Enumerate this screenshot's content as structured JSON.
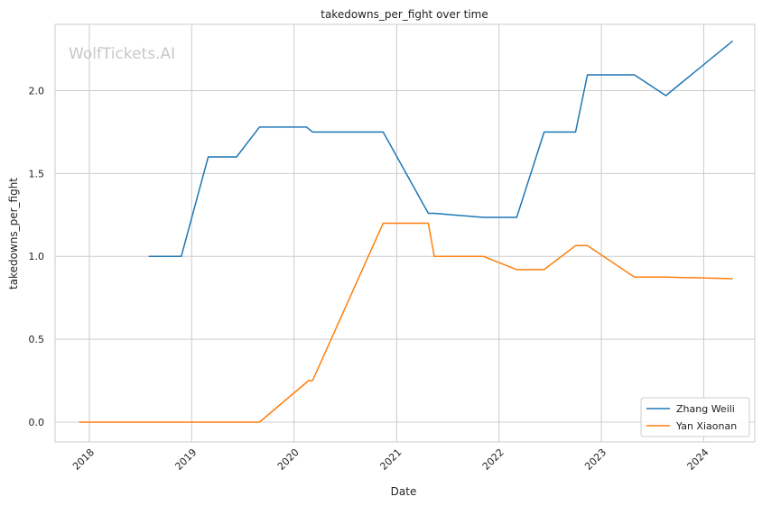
{
  "chart_data": {
    "type": "line",
    "title": "takedowns_per_fight over time",
    "xlabel": "Date",
    "ylabel": "takedowns_per_fight",
    "watermark": "WolfTickets.AI",
    "x_tick_labels": [
      "2018",
      "2019",
      "2020",
      "2021",
      "2022",
      "2023",
      "2024"
    ],
    "y_tick_labels": [
      "0.0",
      "0.5",
      "1.0",
      "1.5",
      "2.0"
    ],
    "y_ticks": [
      0,
      0.5,
      1.0,
      1.5,
      2.0
    ],
    "xlim": [
      "2017-09-01",
      "2024-07-01"
    ],
    "ylim": [
      -0.12,
      2.4
    ],
    "grid": true,
    "legend_position": "bottom-right",
    "series": [
      {
        "name": "Zhang Weili",
        "color": "#1f77b4",
        "points": [
          [
            "2018-08-01",
            1.0
          ],
          [
            "2018-11-25",
            1.0
          ],
          [
            "2019-03-01",
            1.6
          ],
          [
            "2019-06-10",
            1.6
          ],
          [
            "2019-08-31",
            1.78
          ],
          [
            "2020-02-15",
            1.78
          ],
          [
            "2020-03-07",
            1.75
          ],
          [
            "2020-11-14",
            1.75
          ],
          [
            "2021-04-24",
            1.26
          ],
          [
            "2021-05-15",
            1.26
          ],
          [
            "2021-11-06",
            1.235
          ],
          [
            "2022-03-05",
            1.235
          ],
          [
            "2022-06-11",
            1.75
          ],
          [
            "2022-10-01",
            1.75
          ],
          [
            "2022-11-12",
            2.095
          ],
          [
            "2023-04-29",
            2.095
          ],
          [
            "2023-08-19",
            1.97
          ],
          [
            "2024-04-13",
            2.3
          ]
        ]
      },
      {
        "name": "Yan Xiaonan",
        "color": "#ff7f0e",
        "points": [
          [
            "2017-11-25",
            0.0
          ],
          [
            "2019-08-31",
            0.0
          ],
          [
            "2020-02-22",
            0.25
          ],
          [
            "2020-03-07",
            0.25
          ],
          [
            "2020-11-14",
            1.2
          ],
          [
            "2021-04-24",
            1.2
          ],
          [
            "2021-05-15",
            1.0
          ],
          [
            "2021-11-06",
            1.0
          ],
          [
            "2022-03-05",
            0.92
          ],
          [
            "2022-06-11",
            0.92
          ],
          [
            "2022-10-01",
            1.065
          ],
          [
            "2022-11-12",
            1.065
          ],
          [
            "2023-04-29",
            0.875
          ],
          [
            "2023-08-19",
            0.875
          ],
          [
            "2024-04-13",
            0.865
          ]
        ]
      }
    ]
  }
}
